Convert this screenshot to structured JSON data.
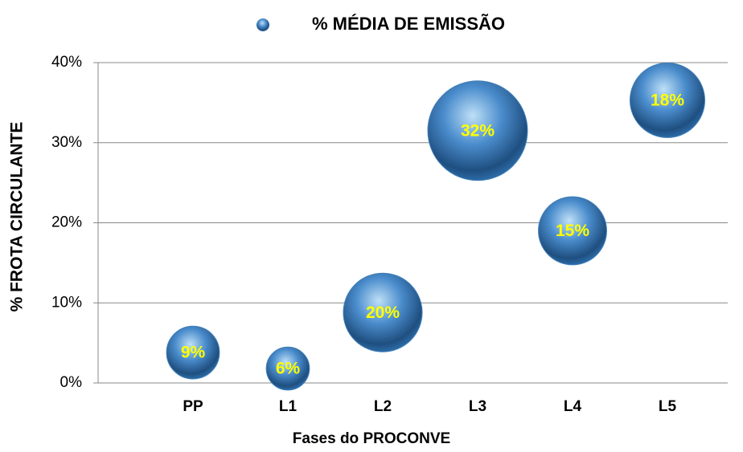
{
  "chart_data": {
    "type": "bubble",
    "x_label": "Fases do PROCONVE",
    "y_label": "% FROTA CIRCULANTE",
    "categories": [
      "PP",
      "L1",
      "L2",
      "L3",
      "L4",
      "L5"
    ],
    "series": [
      {
        "name": "% MÉDIA DE EMISSÃO",
        "color": "#3f7fb8",
        "values": [
          3.8,
          1.8,
          8.8,
          31.5,
          19,
          35.3
        ],
        "sizes": [
          9,
          6,
          20,
          32,
          15,
          18
        ],
        "value_labels": [
          "9%",
          "6%",
          "20%",
          "32%",
          "15%",
          "18%"
        ]
      }
    ],
    "ylim": [
      0,
      40
    ],
    "yticks": [
      {
        "value": 0,
        "label": "0%"
      },
      {
        "value": 10,
        "label": "10%"
      },
      {
        "value": 20,
        "label": "20%"
      },
      {
        "value": 30,
        "label": "30%"
      },
      {
        "value": 40,
        "label": "40%"
      }
    ],
    "grid": true,
    "legend": "top"
  }
}
